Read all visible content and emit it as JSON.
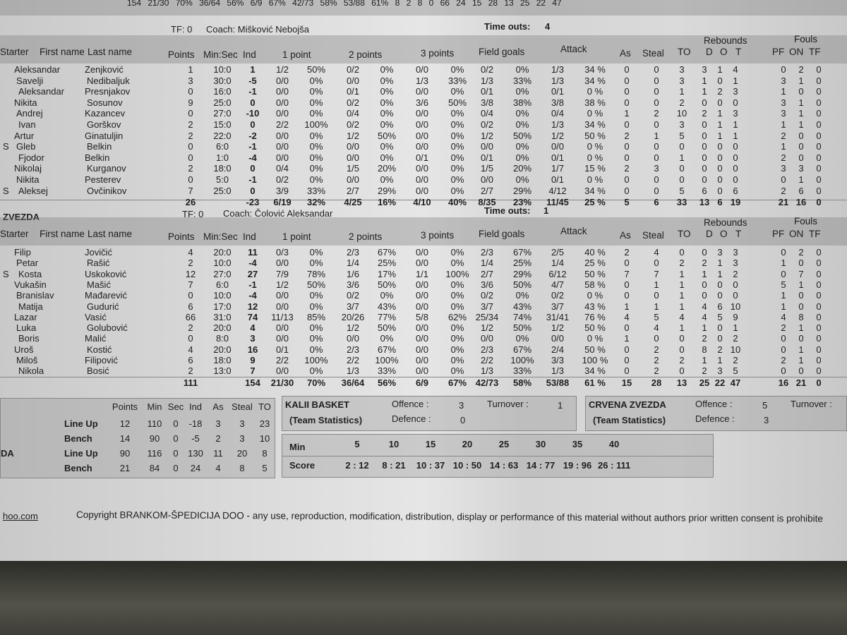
{
  "top_cut_row": "154  21/30  70%  36/64  56%  6/9  67%  42/73  58%  53/88  61%  8  2  8  0  66  24  15  28  13  25  22  47",
  "headers": {
    "starter": "Starter",
    "first": "First name",
    "last": "Last name",
    "points": "Points",
    "minsec": "Min:Sec",
    "ind": "Ind",
    "p1": "1 point",
    "p2": "2 points",
    "p3": "3 points",
    "fg": "Field goals",
    "attack": "Attack",
    "as": "As",
    "steal": "Steal",
    "to": "TO",
    "rebounds": "Rebounds",
    "d": "D",
    "o": "O",
    "t": "T",
    "fouls": "Fouls",
    "pf": "PF",
    "on": "ON",
    "tf": "TF"
  },
  "team1": {
    "tf": "TF: 0",
    "coach": "Coach: Mišković Nebojša",
    "timeouts_label": "Time outs:",
    "timeouts": "4",
    "players": [
      [
        "",
        "Aleksandar",
        "Zenjković",
        "1",
        "10:0",
        "1",
        "1/2",
        "50%",
        "0/2",
        "0%",
        "0/0",
        "0%",
        "0/2",
        "0%",
        "1/3",
        "34 %",
        "0",
        "0",
        "3",
        "3",
        "1",
        "4",
        "0",
        "2",
        "0"
      ],
      [
        "",
        "Savelji",
        "Nedibaljuk",
        "3",
        "30:0",
        "-5",
        "0/0",
        "0%",
        "0/0",
        "0%",
        "1/3",
        "33%",
        "1/3",
        "33%",
        "1/3",
        "34 %",
        "0",
        "0",
        "3",
        "1",
        "0",
        "1",
        "3",
        "1",
        "0"
      ],
      [
        "",
        "Aleksandar",
        "Presnjakov",
        "0",
        "16:0",
        "-1",
        "0/0",
        "0%",
        "0/1",
        "0%",
        "0/0",
        "0%",
        "0/1",
        "0%",
        "0/1",
        "0 %",
        "0",
        "0",
        "1",
        "1",
        "2",
        "3",
        "1",
        "0",
        "0"
      ],
      [
        "",
        "Nikita",
        "Sosunov",
        "9",
        "25:0",
        "0",
        "0/0",
        "0%",
        "0/2",
        "0%",
        "3/6",
        "50%",
        "3/8",
        "38%",
        "3/8",
        "38 %",
        "0",
        "0",
        "2",
        "0",
        "0",
        "0",
        "3",
        "1",
        "0"
      ],
      [
        "",
        "Andrej",
        "Kazancev",
        "0",
        "27:0",
        "-10",
        "0/0",
        "0%",
        "0/4",
        "0%",
        "0/0",
        "0%",
        "0/4",
        "0%",
        "0/4",
        "0 %",
        "1",
        "2",
        "10",
        "2",
        "1",
        "3",
        "3",
        "1",
        "0"
      ],
      [
        "",
        "Ivan",
        "Gorškov",
        "2",
        "15:0",
        "0",
        "2/2",
        "100%",
        "0/2",
        "0%",
        "0/0",
        "0%",
        "0/2",
        "0%",
        "1/3",
        "34 %",
        "0",
        "0",
        "3",
        "0",
        "1",
        "1",
        "1",
        "1",
        "0"
      ],
      [
        "",
        "Artur",
        "Ginatuljin",
        "2",
        "22:0",
        "-2",
        "0/0",
        "0%",
        "1/2",
        "50%",
        "0/0",
        "0%",
        "1/2",
        "50%",
        "1/2",
        "50 %",
        "2",
        "1",
        "5",
        "0",
        "1",
        "1",
        "2",
        "0",
        "0"
      ],
      [
        "S",
        "Gleb",
        "Belkin",
        "0",
        "6:0",
        "-1",
        "0/0",
        "0%",
        "0/0",
        "0%",
        "0/0",
        "0%",
        "0/0",
        "0%",
        "0/0",
        "0 %",
        "0",
        "0",
        "0",
        "0",
        "0",
        "0",
        "1",
        "0",
        "0"
      ],
      [
        "",
        "Fjodor",
        "Belkin",
        "0",
        "1:0",
        "-4",
        "0/0",
        "0%",
        "0/0",
        "0%",
        "0/1",
        "0%",
        "0/1",
        "0%",
        "0/1",
        "0 %",
        "0",
        "0",
        "1",
        "0",
        "0",
        "0",
        "2",
        "0",
        "0"
      ],
      [
        "",
        "Nikolaj",
        "Kurganov",
        "2",
        "18:0",
        "0",
        "0/4",
        "0%",
        "1/5",
        "20%",
        "0/0",
        "0%",
        "1/5",
        "20%",
        "1/7",
        "15 %",
        "2",
        "3",
        "0",
        "0",
        "0",
        "0",
        "3",
        "3",
        "0"
      ],
      [
        "",
        "Nikita",
        "Pesterev",
        "0",
        "5:0",
        "-1",
        "0/2",
        "0%",
        "0/0",
        "0%",
        "0/0",
        "0%",
        "0/0",
        "0%",
        "0/1",
        "0 %",
        "0",
        "0",
        "0",
        "0",
        "0",
        "0",
        "0",
        "1",
        "0"
      ],
      [
        "S",
        "Aleksej",
        "Ovčinikov",
        "7",
        "25:0",
        "0",
        "3/9",
        "33%",
        "2/7",
        "29%",
        "0/0",
        "0%",
        "2/7",
        "29%",
        "4/12",
        "34 %",
        "0",
        "0",
        "5",
        "6",
        "0",
        "6",
        "2",
        "6",
        "0"
      ]
    ],
    "totals": [
      "",
      "",
      "",
      "26",
      "",
      "-23",
      "6/19",
      "32%",
      "4/25",
      "16%",
      "4/10",
      "40%",
      "8/35",
      "23%",
      "11/45",
      "25 %",
      "5",
      "6",
      "33",
      "13",
      "6",
      "19",
      "21",
      "16",
      "0"
    ]
  },
  "team2": {
    "name": "ZVEZDA",
    "tf": "TF: 0",
    "coach": "Coach: Čolović Aleksandar",
    "timeouts_label": "Time outs:",
    "timeouts": "1",
    "players": [
      [
        "",
        "Filip",
        "Jovičić",
        "4",
        "20:0",
        "11",
        "0/3",
        "0%",
        "2/3",
        "67%",
        "0/0",
        "0%",
        "2/3",
        "67%",
        "2/5",
        "40 %",
        "2",
        "4",
        "0",
        "0",
        "3",
        "3",
        "0",
        "2",
        "0"
      ],
      [
        "",
        "Petar",
        "Rašić",
        "2",
        "10:0",
        "-4",
        "0/0",
        "0%",
        "1/4",
        "25%",
        "0/0",
        "0%",
        "1/4",
        "25%",
        "1/4",
        "25 %",
        "0",
        "0",
        "2",
        "2",
        "1",
        "3",
        "1",
        "0",
        "0"
      ],
      [
        "S",
        "Kosta",
        "Uskoković",
        "12",
        "27:0",
        "27",
        "7/9",
        "78%",
        "1/6",
        "17%",
        "1/1",
        "100%",
        "2/7",
        "29%",
        "6/12",
        "50 %",
        "7",
        "7",
        "1",
        "1",
        "1",
        "2",
        "0",
        "7",
        "0"
      ],
      [
        "",
        "Vukašin",
        "Mašić",
        "7",
        "6:0",
        "-1",
        "1/2",
        "50%",
        "3/6",
        "50%",
        "0/0",
        "0%",
        "3/6",
        "50%",
        "4/7",
        "58 %",
        "0",
        "1",
        "1",
        "0",
        "0",
        "0",
        "5",
        "1",
        "0"
      ],
      [
        "",
        "Branislav",
        "Mađarević",
        "0",
        "10:0",
        "-4",
        "0/0",
        "0%",
        "0/2",
        "0%",
        "0/0",
        "0%",
        "0/2",
        "0%",
        "0/2",
        "0 %",
        "0",
        "0",
        "1",
        "0",
        "0",
        "0",
        "1",
        "0",
        "0"
      ],
      [
        "",
        "Matija",
        "Gudurić",
        "6",
        "17:0",
        "12",
        "0/0",
        "0%",
        "3/7",
        "43%",
        "0/0",
        "0%",
        "3/7",
        "43%",
        "3/7",
        "43 %",
        "1",
        "1",
        "1",
        "4",
        "6",
        "10",
        "1",
        "0",
        "0"
      ],
      [
        "",
        "Lazar",
        "Vasić",
        "66",
        "31:0",
        "74",
        "11/13",
        "85%",
        "20/26",
        "77%",
        "5/8",
        "62%",
        "25/34",
        "74%",
        "31/41",
        "76 %",
        "4",
        "5",
        "4",
        "4",
        "5",
        "9",
        "4",
        "8",
        "0"
      ],
      [
        "",
        "Luka",
        "Golubović",
        "2",
        "20:0",
        "4",
        "0/0",
        "0%",
        "1/2",
        "50%",
        "0/0",
        "0%",
        "1/2",
        "50%",
        "1/2",
        "50 %",
        "0",
        "4",
        "1",
        "1",
        "0",
        "1",
        "2",
        "1",
        "0"
      ],
      [
        "",
        "Boris",
        "Malić",
        "0",
        "8:0",
        "3",
        "0/0",
        "0%",
        "0/0",
        "0%",
        "0/0",
        "0%",
        "0/0",
        "0%",
        "0/0",
        "0 %",
        "1",
        "0",
        "0",
        "2",
        "0",
        "2",
        "0",
        "0",
        "0"
      ],
      [
        "",
        "Uroš",
        "Kostić",
        "4",
        "20:0",
        "16",
        "0/1",
        "0%",
        "2/3",
        "67%",
        "0/0",
        "0%",
        "2/3",
        "67%",
        "2/4",
        "50 %",
        "0",
        "2",
        "0",
        "8",
        "2",
        "10",
        "0",
        "1",
        "0"
      ],
      [
        "",
        "Miloš",
        "Filipović",
        "6",
        "18:0",
        "9",
        "2/2",
        "100%",
        "2/2",
        "100%",
        "0/0",
        "0%",
        "2/2",
        "100%",
        "3/3",
        "100 %",
        "0",
        "2",
        "2",
        "1",
        "1",
        "2",
        "2",
        "1",
        "0"
      ],
      [
        "",
        "Nikola",
        "Bosić",
        "2",
        "13:0",
        "7",
        "0/0",
        "0%",
        "1/3",
        "33%",
        "0/0",
        "0%",
        "1/3",
        "33%",
        "1/3",
        "34 %",
        "0",
        "2",
        "0",
        "2",
        "3",
        "5",
        "0",
        "0",
        "0"
      ]
    ],
    "totals": [
      "",
      "",
      "",
      "111",
      "",
      "154",
      "21/30",
      "70%",
      "36/64",
      "56%",
      "6/9",
      "67%",
      "42/73",
      "58%",
      "53/88",
      "61 %",
      "15",
      "28",
      "13",
      "25",
      "22",
      "47",
      "16",
      "21",
      "0"
    ]
  },
  "bench_table": {
    "headers": [
      "Points",
      "Min",
      "Sec",
      "Ind",
      "As",
      "Steal",
      "TO"
    ],
    "rows": [
      {
        "team": "",
        "label": "Line Up",
        "values": [
          "12",
          "110",
          "0",
          "-18",
          "3",
          "3",
          "23"
        ]
      },
      {
        "team": "",
        "label": "Bench",
        "values": [
          "14",
          "90",
          "0",
          "-5",
          "2",
          "3",
          "10"
        ]
      },
      {
        "team": "DA",
        "label": "Line Up",
        "values": [
          "90",
          "116",
          "0",
          "130",
          "11",
          "20",
          "8"
        ]
      },
      {
        "team": "",
        "label": "Bench",
        "values": [
          "21",
          "84",
          "0",
          "24",
          "4",
          "8",
          "5"
        ]
      }
    ]
  },
  "team_stats": [
    {
      "name": "KALII BASKET",
      "sub": "(Team Statistics)",
      "offence_label": "Offence :",
      "offence": "3",
      "defence_label": "Defence :",
      "defence": "0",
      "turnover_label": "Turnover :",
      "turnover": "1"
    },
    {
      "name": "CRVENA ZVEZDA",
      "sub": "(Team Statistics)",
      "offence_label": "Offence :",
      "offence": "5",
      "defence_label": "Defence :",
      "defence": "3",
      "turnover_label": "Turnover :",
      "turnover": ""
    }
  ],
  "progress": {
    "min_label": "Min",
    "score_label": "Score",
    "mins": [
      "5",
      "10",
      "15",
      "20",
      "25",
      "30",
      "35",
      "40"
    ],
    "scores": [
      "2 : 12",
      "8 : 21",
      "10 : 37",
      "10 : 50",
      "14 : 63",
      "14 : 77",
      "19 : 96",
      "26 : 111"
    ]
  },
  "footer": {
    "link": "hoo.com",
    "copyright": "Copyright BRANKOM-ŠPEDICIJA DOO - any use, reproduction, modification, distribution, display or performance of this material without authors prior written consent is prohibite"
  }
}
